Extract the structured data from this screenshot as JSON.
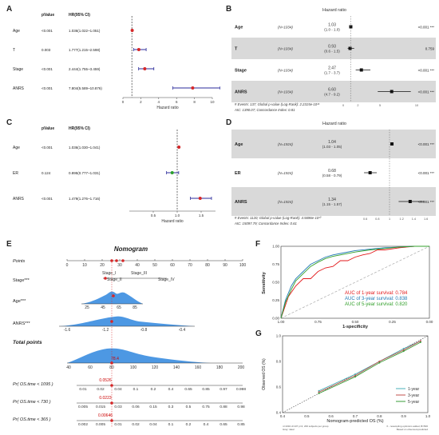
{
  "labels": {
    "A": "A",
    "B": "B",
    "C": "C",
    "D": "D",
    "E": "E",
    "F": "F",
    "G": "G"
  },
  "panelA": {
    "headers": {
      "p": "pValue",
      "hr": "HR(95% CI)"
    },
    "xlabel": "Hazard ratio",
    "chart_data": {
      "type": "scatter",
      "xlim": [
        0,
        10
      ],
      "ticks": [
        "0",
        "2",
        "4",
        "6",
        "8",
        "10"
      ],
      "rows": [
        {
          "name": "Age",
          "p": "<0.001",
          "hr": "1.036(1.022~1.051)",
          "est": 1.036,
          "lo": 1.022,
          "hi": 1.051,
          "color": "#d62728"
        },
        {
          "name": "T",
          "p": "0.003",
          "hr": "1.777(1.215~2.598)",
          "est": 1.777,
          "lo": 1.215,
          "hi": 2.598,
          "color": "#d62728"
        },
        {
          "name": "Stage",
          "p": "<0.001",
          "hr": "2.444(1.755~3.459)",
          "est": 2.444,
          "lo": 1.755,
          "hi": 3.459,
          "color": "#d62728"
        },
        {
          "name": "ANRS",
          "p": "<0.001",
          "hr": "7.804(5.589~10.876)",
          "est": 7.804,
          "lo": 5.589,
          "hi": 10.876,
          "color": "#d62728"
        }
      ]
    }
  },
  "panelB": {
    "title": "Hazard ratio",
    "footer1": "# Events: 137; Global p-value (Log-Rank): 2.2315e-10¹⁶",
    "footer2": "AIC: 1390.07; Concordance Index: 0.81",
    "chart_data": {
      "type": "scatter",
      "xlim": [
        0,
        10
      ],
      "ticks": [
        "0",
        "2",
        "5",
        "10"
      ],
      "rows": [
        {
          "name": "Age",
          "n": "(N=1034)",
          "hr": "1.03",
          "ci": "(1.0 - 1.0)",
          "p": "<0.001 ***",
          "est": 1.03,
          "lo": 1.0,
          "hi": 1.0,
          "shade": false
        },
        {
          "name": "T",
          "n": "(N=1034)",
          "hr": "0.93",
          "ci": "(0.6 - 1.5)",
          "p": "0.759",
          "est": 0.93,
          "lo": 0.6,
          "hi": 1.5,
          "shade": true
        },
        {
          "name": "Stage",
          "n": "(N=1034)",
          "hr": "2.47",
          "ci": "(1.7 - 3.7)",
          "p": "<0.001 ***",
          "est": 2.47,
          "lo": 1.7,
          "hi": 3.7,
          "shade": false
        },
        {
          "name": "ANRS",
          "n": "(N=1034)",
          "hr": "6.60",
          "ci": "(4.7 - 9.2)",
          "p": "<0.001 ***",
          "est": 6.6,
          "lo": 4.7,
          "hi": 9.2,
          "shade": true
        }
      ]
    }
  },
  "panelC": {
    "headers": {
      "p": "pValue",
      "hr": "HR(95% CI)"
    },
    "xlabel": "Hazard ratio",
    "chart_data": {
      "type": "scatter",
      "xlim": [
        0,
        1.8
      ],
      "ticks": [
        "0.5",
        "1.0",
        "1.5"
      ],
      "rows": [
        {
          "name": "Age",
          "p": "<0.001",
          "hr": "1.036(1.030~1.041)",
          "est": 1.036,
          "lo": 1.03,
          "hi": 1.041,
          "color": "#d62728"
        },
        {
          "name": "ER",
          "p": "0.124",
          "hr": "0.895(0.777~1.031)",
          "est": 0.895,
          "lo": 0.777,
          "hi": 1.031,
          "color": "#2ca02c"
        },
        {
          "name": "ANRS",
          "p": "<0.001",
          "hr": "1.479(1.276~1.716)",
          "est": 1.479,
          "lo": 1.276,
          "hi": 1.716,
          "color": "#d62728"
        }
      ]
    }
  },
  "panelD": {
    "title": "Hazard ratio",
    "footer1": "# Events: 1120; Global p-value (Log-Rank): 4.5696e-10¹⁰",
    "footer2": "AIC: 15097.79; Concordance Index: 0.61",
    "chart_data": {
      "type": "scatter",
      "xlim": [
        0.5,
        1.5
      ],
      "ticks": [
        "0.6",
        "0.8",
        "1",
        "1.2",
        "1.4",
        "1.6"
      ],
      "rows": [
        {
          "name": "Age",
          "n": "(N=1924)",
          "hr": "1.04",
          "ci": "(1.03 - 1.05)",
          "p": "<0.001 ***",
          "est": 1.04,
          "lo": 1.03,
          "hi": 1.05,
          "shade": true
        },
        {
          "name": "ER",
          "n": "(N=1924)",
          "hr": "0.68",
          "ci": "(0.58 - 0.79)",
          "p": "<0.001 ***",
          "est": 0.68,
          "lo": 0.58,
          "hi": 0.79,
          "shade": false
        },
        {
          "name": "ANRS",
          "n": "(N=1924)",
          "hr": "1.34",
          "ci": "(1.15 - 1.57)",
          "p": "<0.001 ***",
          "est": 1.34,
          "lo": 1.15,
          "hi": 1.57,
          "shade": true
        }
      ]
    }
  },
  "panelE": {
    "title": "Nomogram",
    "points_label": "Points",
    "points_ticks": [
      "0",
      "10",
      "20",
      "30",
      "40",
      "50",
      "60",
      "70",
      "80",
      "90",
      "100"
    ],
    "stage_label": "Stage***",
    "stage_levels": [
      "Stage_I",
      "Stage_II",
      "Stage_III",
      "Stage_IV"
    ],
    "age_label": "Age***",
    "age_ticks": [
      "25",
      "45",
      "65",
      "85"
    ],
    "anrs_label": "ANRS***",
    "anrs_ticks": [
      "-1.6",
      "-1.2",
      "-0.8",
      "-0.4"
    ],
    "total_label": "Total points",
    "total_ticks": [
      "40",
      "60",
      "80",
      "100",
      "120",
      "140",
      "160",
      "180",
      "200"
    ],
    "total_marker": "78.4",
    "os_rows": [
      {
        "label": "Pr( OS.time < 1095 )",
        "value": "0.0526",
        "ticks": [
          "0.01",
          "0.02",
          "0.04",
          "0.1",
          "0.2",
          "0.4",
          "0.65",
          "0.85",
          "0.97",
          "0.998"
        ]
      },
      {
        "label": "Pr( OS.time < 730 )",
        "value": "0.0223",
        "ticks": [
          "0.005",
          "0.015",
          "0.03",
          "0.06",
          "0.15",
          "0.3",
          "0.5",
          "0.75",
          "0.88",
          "0.98"
        ]
      },
      {
        "label": "Pr( OS.time < 365 )",
        "value": "0.00646",
        "ticks": [
          "0.002",
          "0.005",
          "0.01",
          "0.02",
          "0.04",
          "0.1",
          "0.2",
          "0.4",
          "0.65",
          "0.85"
        ]
      }
    ]
  },
  "panelF": {
    "xlabel": "1-specificity",
    "ylabel": "Sensitivity",
    "chart_data": {
      "type": "line",
      "xlim": [
        1.0,
        0.0
      ],
      "ylim": [
        0,
        1
      ],
      "xticks": [
        "1.00",
        "0.75",
        "0.50",
        "0.25",
        "0.00"
      ],
      "yticks": [
        "0.00",
        "0.25",
        "0.50",
        "0.75",
        "1.00"
      ],
      "series": [
        {
          "name": "AUC of 1-year survival: 0.784",
          "color": "#e31a1c",
          "x": [
            0,
            0.05,
            0.1,
            0.15,
            0.2,
            0.25,
            0.3,
            0.35,
            0.4,
            0.45,
            0.5,
            0.55,
            0.6,
            0.65,
            0.7,
            0.8,
            0.9,
            1.0
          ],
          "y": [
            0,
            0.3,
            0.45,
            0.55,
            0.55,
            0.65,
            0.7,
            0.72,
            0.8,
            0.8,
            0.85,
            0.88,
            0.9,
            0.95,
            0.95,
            0.98,
            1.0,
            1.0
          ]
        },
        {
          "name": "AUC of 3-year survival: 0.838",
          "color": "#1f78b4",
          "x": [
            0,
            0.03,
            0.07,
            0.1,
            0.15,
            0.2,
            0.25,
            0.3,
            0.35,
            0.4,
            0.5,
            0.6,
            0.7,
            0.8,
            0.9,
            1.0
          ],
          "y": [
            0,
            0.25,
            0.45,
            0.55,
            0.65,
            0.75,
            0.8,
            0.85,
            0.88,
            0.9,
            0.94,
            0.96,
            0.98,
            0.99,
            1.0,
            1.0
          ]
        },
        {
          "name": "AUC of 5-year survival: 0.820",
          "color": "#33a02c",
          "x": [
            0,
            0.03,
            0.07,
            0.1,
            0.15,
            0.2,
            0.25,
            0.3,
            0.35,
            0.4,
            0.5,
            0.6,
            0.7,
            0.8,
            0.9,
            1.0
          ],
          "y": [
            0,
            0.22,
            0.4,
            0.52,
            0.62,
            0.72,
            0.78,
            0.83,
            0.86,
            0.88,
            0.92,
            0.95,
            0.97,
            0.99,
            1.0,
            1.0
          ]
        }
      ]
    }
  },
  "panelG": {
    "xlabel": "Nomogram-predicted OS (%)",
    "ylabel": "Observed OS (%)",
    "footnote1": "n=1034 d=137 p=4, 200 subjects per group",
    "footnote2": "X - resampling optimism added, B=500",
    "footnote3": "Gray: ideal",
    "footnote4": "Based on observed-predicted",
    "chart_data": {
      "type": "line",
      "xlim": [
        0.4,
        1.0
      ],
      "ylim": [
        0.4,
        1.0
      ],
      "xticks": [
        "0.4",
        "0.5",
        "0.6",
        "0.7",
        "0.8",
        "0.9",
        "1.0"
      ],
      "yticks": [
        "0.4",
        "0.6",
        "0.8",
        "1.0"
      ],
      "series": [
        {
          "name": "1-year",
          "color": "#4ab0b8",
          "x": [
            0.55,
            0.7,
            0.8,
            0.9,
            0.97
          ],
          "y": [
            0.57,
            0.7,
            0.8,
            0.9,
            0.96
          ]
        },
        {
          "name": "3-year",
          "color": "#c0504d",
          "x": [
            0.55,
            0.7,
            0.8,
            0.9,
            0.97
          ],
          "y": [
            0.56,
            0.69,
            0.8,
            0.89,
            0.96
          ]
        },
        {
          "name": "5-year",
          "color": "#3a9d3a",
          "x": [
            0.55,
            0.7,
            0.8,
            0.9,
            0.97
          ],
          "y": [
            0.55,
            0.68,
            0.79,
            0.88,
            0.95
          ]
        }
      ]
    }
  }
}
